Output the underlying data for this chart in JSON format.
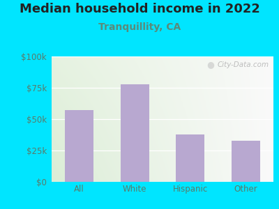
{
  "title": "Median household income in 2022",
  "subtitle": "Tranquillity, CA",
  "categories": [
    "All",
    "White",
    "Hispanic",
    "Other"
  ],
  "values": [
    57000,
    78000,
    38000,
    33000
  ],
  "bar_color": "#b8a8d0",
  "title_fontsize": 13,
  "subtitle_fontsize": 10,
  "subtitle_color": "#5a8a7a",
  "title_color": "#222222",
  "tick_color": "#5a7a6a",
  "background_outer": "#00e5ff",
  "ylim": [
    0,
    100000
  ],
  "yticks": [
    0,
    25000,
    50000,
    75000,
    100000
  ],
  "ytick_labels": [
    "$0",
    "$25k",
    "$50k",
    "$75k",
    "$100k"
  ],
  "watermark": "City-Data.com",
  "grid_color": "#dddddd"
}
